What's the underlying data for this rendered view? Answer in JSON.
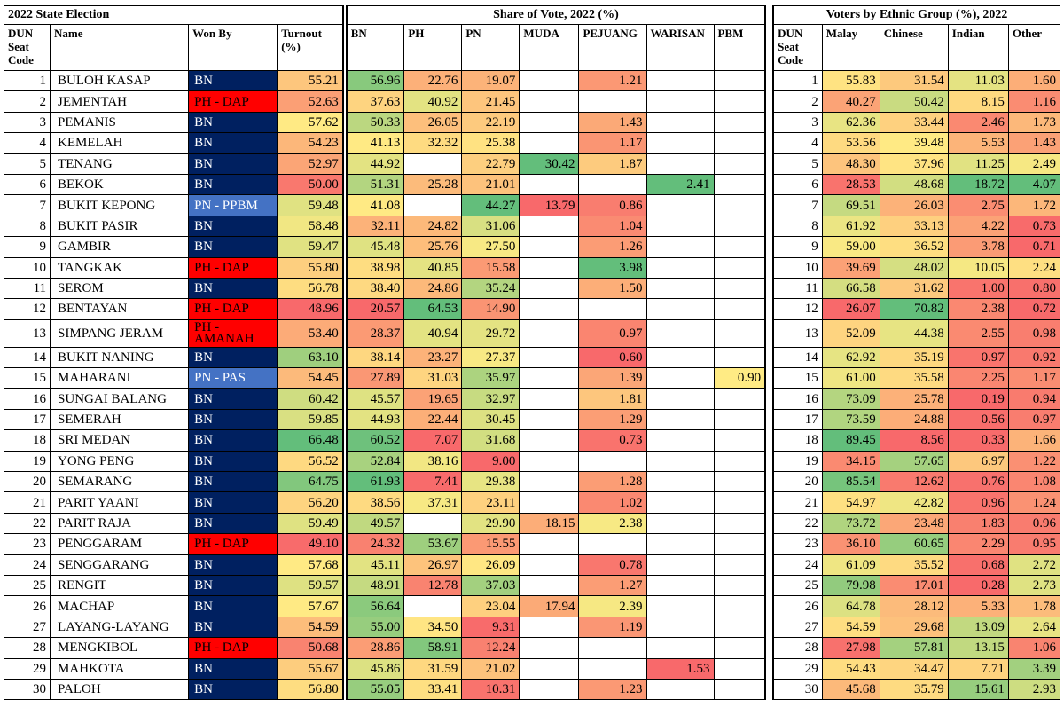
{
  "headers": {
    "group_left": "2022 State Election",
    "group_mid": "Share of Vote, 2022 (%)",
    "group_right": "Voters by Ethnic Group (%), 2022",
    "dun_seat_code": "DUN Seat Code",
    "name": "Name",
    "won_by": "Won By",
    "turnout": "Turnout (%)",
    "parties": [
      "BN",
      "PH",
      "PN",
      "MUDA",
      "PEJUANG",
      "WARISAN",
      "PBM"
    ],
    "dun_seat_code_right": "DUN Seat Code",
    "ethnic": [
      "Malay",
      "Chinese",
      "Indian",
      "Other"
    ]
  },
  "colors": {
    "BN": "#002060",
    "PH - DAP": "#ff0000",
    "PH - AMANAH": "#ff0000",
    "PN - PPBM": "#4472c4",
    "PN - PAS": "#4472c4"
  },
  "rows": [
    {
      "code": "1",
      "name": "BULOH KASAP",
      "won": "BN",
      "turnout": "55.21",
      "bn": "56.96",
      "ph": "22.76",
      "pn": "19.07",
      "muda": "",
      "pejuang": "1.21",
      "warisan": "",
      "pbm": "",
      "malay": "55.83",
      "chinese": "31.54",
      "indian": "11.03",
      "other": "1.60"
    },
    {
      "code": "2",
      "name": "JEMENTAH",
      "won": "PH - DAP",
      "turnout": "52.63",
      "bn": "37.63",
      "ph": "40.92",
      "pn": "21.45",
      "muda": "",
      "pejuang": "",
      "warisan": "",
      "pbm": "",
      "malay": "40.27",
      "chinese": "50.42",
      "indian": "8.15",
      "other": "1.16"
    },
    {
      "code": "3",
      "name": "PEMANIS",
      "won": "BN",
      "turnout": "57.62",
      "bn": "50.33",
      "ph": "26.05",
      "pn": "22.19",
      "muda": "",
      "pejuang": "1.43",
      "warisan": "",
      "pbm": "",
      "malay": "62.36",
      "chinese": "33.44",
      "indian": "2.46",
      "other": "1.73"
    },
    {
      "code": "4",
      "name": "KEMELAH",
      "won": "BN",
      "turnout": "54.23",
      "bn": "41.13",
      "ph": "32.32",
      "pn": "25.38",
      "muda": "",
      "pejuang": "1.17",
      "warisan": "",
      "pbm": "",
      "malay": "53.56",
      "chinese": "39.48",
      "indian": "5.53",
      "other": "1.43"
    },
    {
      "code": "5",
      "name": "TENANG",
      "won": "BN",
      "turnout": "52.97",
      "bn": "44.92",
      "ph": "",
      "pn": "22.79",
      "muda": "30.42",
      "pejuang": "1.87",
      "warisan": "",
      "pbm": "",
      "malay": "48.30",
      "chinese": "37.96",
      "indian": "11.25",
      "other": "2.49"
    },
    {
      "code": "6",
      "name": "BEKOK",
      "won": "BN",
      "turnout": "50.00",
      "bn": "51.31",
      "ph": "25.28",
      "pn": "21.01",
      "muda": "",
      "pejuang": "",
      "warisan": "2.41",
      "pbm": "",
      "malay": "28.53",
      "chinese": "48.68",
      "indian": "18.72",
      "other": "4.07"
    },
    {
      "code": "7",
      "name": "BUKIT KEPONG",
      "won": "PN - PPBM",
      "turnout": "59.48",
      "bn": "41.08",
      "ph": "",
      "pn": "44.27",
      "muda": "13.79",
      "pejuang": "0.86",
      "warisan": "",
      "pbm": "",
      "malay": "69.51",
      "chinese": "26.03",
      "indian": "2.75",
      "other": "1.72"
    },
    {
      "code": "8",
      "name": "BUKIT PASIR",
      "won": "BN",
      "turnout": "58.48",
      "bn": "32.11",
      "ph": "24.82",
      "pn": "31.06",
      "muda": "",
      "pejuang": "1.04",
      "warisan": "",
      "pbm": "",
      "malay": "61.92",
      "chinese": "33.13",
      "indian": "4.22",
      "other": "0.73"
    },
    {
      "code": "9",
      "name": "GAMBIR",
      "won": "BN",
      "turnout": "59.47",
      "bn": "45.48",
      "ph": "25.76",
      "pn": "27.50",
      "muda": "",
      "pejuang": "1.26",
      "warisan": "",
      "pbm": "",
      "malay": "59.00",
      "chinese": "36.52",
      "indian": "3.78",
      "other": "0.71"
    },
    {
      "code": "10",
      "name": "TANGKAK",
      "won": "PH - DAP",
      "turnout": "55.80",
      "bn": "38.98",
      "ph": "40.85",
      "pn": "15.58",
      "muda": "",
      "pejuang": "3.98",
      "warisan": "",
      "pbm": "",
      "malay": "39.69",
      "chinese": "48.02",
      "indian": "10.05",
      "other": "2.24"
    },
    {
      "code": "11",
      "name": "SEROM",
      "won": "BN",
      "turnout": "56.78",
      "bn": "38.40",
      "ph": "24.86",
      "pn": "35.24",
      "muda": "",
      "pejuang": "1.50",
      "warisan": "",
      "pbm": "",
      "malay": "66.58",
      "chinese": "31.62",
      "indian": "1.00",
      "other": "0.80"
    },
    {
      "code": "12",
      "name": "BENTAYAN",
      "won": "PH - DAP",
      "turnout": "48.96",
      "bn": "20.57",
      "ph": "64.53",
      "pn": "14.90",
      "muda": "",
      "pejuang": "",
      "warisan": "",
      "pbm": "",
      "malay": "26.07",
      "chinese": "70.82",
      "indian": "2.38",
      "other": "0.72"
    },
    {
      "code": "13",
      "name": "SIMPANG JERAM",
      "won": "PH - AMANAH",
      "turnout": "53.40",
      "bn": "28.37",
      "ph": "40.94",
      "pn": "29.72",
      "muda": "",
      "pejuang": "0.97",
      "warisan": "",
      "pbm": "",
      "malay": "52.09",
      "chinese": "44.38",
      "indian": "2.55",
      "other": "0.98"
    },
    {
      "code": "14",
      "name": "BUKIT NANING",
      "won": "BN",
      "turnout": "63.10",
      "bn": "38.14",
      "ph": "23.27",
      "pn": "27.37",
      "muda": "",
      "pejuang": "0.60",
      "warisan": "",
      "pbm": "",
      "malay": "62.92",
      "chinese": "35.19",
      "indian": "0.97",
      "other": "0.92"
    },
    {
      "code": "15",
      "name": "MAHARANI",
      "won": "PN - PAS",
      "turnout": "54.45",
      "bn": "27.89",
      "ph": "31.03",
      "pn": "35.97",
      "muda": "",
      "pejuang": "1.39",
      "warisan": "",
      "pbm": "0.90",
      "malay": "61.00",
      "chinese": "35.58",
      "indian": "2.25",
      "other": "1.17"
    },
    {
      "code": "16",
      "name": "SUNGAI BALANG",
      "won": "BN",
      "turnout": "60.42",
      "bn": "45.57",
      "ph": "19.65",
      "pn": "32.97",
      "muda": "",
      "pejuang": "1.81",
      "warisan": "",
      "pbm": "",
      "malay": "73.09",
      "chinese": "25.78",
      "indian": "0.19",
      "other": "0.94"
    },
    {
      "code": "17",
      "name": "SEMERAH",
      "won": "BN",
      "turnout": "59.85",
      "bn": "44.93",
      "ph": "22.44",
      "pn": "30.45",
      "muda": "",
      "pejuang": "1.29",
      "warisan": "",
      "pbm": "",
      "malay": "73.59",
      "chinese": "24.88",
      "indian": "0.56",
      "other": "0.97"
    },
    {
      "code": "18",
      "name": "SRI MEDAN",
      "won": "BN",
      "turnout": "66.48",
      "bn": "60.52",
      "ph": "7.07",
      "pn": "31.68",
      "muda": "",
      "pejuang": "0.73",
      "warisan": "",
      "pbm": "",
      "malay": "89.45",
      "chinese": "8.56",
      "indian": "0.33",
      "other": "1.66"
    },
    {
      "code": "19",
      "name": "YONG PENG",
      "won": "BN",
      "turnout": "56.52",
      "bn": "52.84",
      "ph": "38.16",
      "pn": "9.00",
      "muda": "",
      "pejuang": "",
      "warisan": "",
      "pbm": "",
      "malay": "34.15",
      "chinese": "57.65",
      "indian": "6.97",
      "other": "1.22"
    },
    {
      "code": "20",
      "name": "SEMARANG",
      "won": "BN",
      "turnout": "64.75",
      "bn": "61.93",
      "ph": "7.41",
      "pn": "29.38",
      "muda": "",
      "pejuang": "1.28",
      "warisan": "",
      "pbm": "",
      "malay": "85.54",
      "chinese": "12.62",
      "indian": "0.76",
      "other": "1.08"
    },
    {
      "code": "21",
      "name": "PARIT YAANI",
      "won": "BN",
      "turnout": "56.20",
      "bn": "38.56",
      "ph": "37.31",
      "pn": "23.11",
      "muda": "",
      "pejuang": "1.02",
      "warisan": "",
      "pbm": "",
      "malay": "54.97",
      "chinese": "42.82",
      "indian": "0.96",
      "other": "1.24"
    },
    {
      "code": "22",
      "name": "PARIT RAJA",
      "won": "BN",
      "turnout": "59.49",
      "bn": "49.57",
      "ph": "",
      "pn": "29.90",
      "muda": "18.15",
      "pejuang": "2.38",
      "warisan": "",
      "pbm": "",
      "malay": "73.72",
      "chinese": "23.48",
      "indian": "1.83",
      "other": "0.96"
    },
    {
      "code": "23",
      "name": "PENGGARAM",
      "won": "PH - DAP",
      "turnout": "49.10",
      "bn": "24.32",
      "ph": "53.67",
      "pn": "15.55",
      "muda": "",
      "pejuang": "",
      "warisan": "",
      "pbm": "",
      "malay": "36.10",
      "chinese": "60.65",
      "indian": "2.29",
      "other": "0.95"
    },
    {
      "code": "24",
      "name": "SENGGARANG",
      "won": "BN",
      "turnout": "57.68",
      "bn": "45.11",
      "ph": "26.97",
      "pn": "26.09",
      "muda": "",
      "pejuang": "0.78",
      "warisan": "",
      "pbm": "",
      "malay": "61.09",
      "chinese": "35.52",
      "indian": "0.68",
      "other": "2.72"
    },
    {
      "code": "25",
      "name": "RENGIT",
      "won": "BN",
      "turnout": "59.57",
      "bn": "48.91",
      "ph": "12.78",
      "pn": "37.03",
      "muda": "",
      "pejuang": "1.27",
      "warisan": "",
      "pbm": "",
      "malay": "79.98",
      "chinese": "17.01",
      "indian": "0.28",
      "other": "2.73"
    },
    {
      "code": "26",
      "name": "MACHAP",
      "won": "BN",
      "turnout": "57.67",
      "bn": "56.64",
      "ph": "",
      "pn": "23.04",
      "muda": "17.94",
      "pejuang": "2.39",
      "warisan": "",
      "pbm": "",
      "malay": "64.78",
      "chinese": "28.12",
      "indian": "5.33",
      "other": "1.78"
    },
    {
      "code": "27",
      "name": "LAYANG-LAYANG",
      "won": "BN",
      "turnout": "54.59",
      "bn": "55.00",
      "ph": "34.50",
      "pn": "9.31",
      "muda": "",
      "pejuang": "1.19",
      "warisan": "",
      "pbm": "",
      "malay": "54.59",
      "chinese": "29.68",
      "indian": "13.09",
      "other": "2.64"
    },
    {
      "code": "28",
      "name": "MENGKIBOL",
      "won": "PH - DAP",
      "turnout": "50.68",
      "bn": "28.86",
      "ph": "58.91",
      "pn": "12.24",
      "muda": "",
      "pejuang": "",
      "warisan": "",
      "pbm": "",
      "malay": "27.98",
      "chinese": "57.81",
      "indian": "13.15",
      "other": "1.06"
    },
    {
      "code": "29",
      "name": "MAHKOTA",
      "won": "BN",
      "turnout": "55.67",
      "bn": "45.86",
      "ph": "31.59",
      "pn": "21.02",
      "muda": "",
      "pejuang": "",
      "warisan": "1.53",
      "pbm": "",
      "malay": "54.43",
      "chinese": "34.47",
      "indian": "7.71",
      "other": "3.39"
    },
    {
      "code": "30",
      "name": "PALOH",
      "won": "BN",
      "turnout": "56.80",
      "bn": "55.05",
      "ph": "33.41",
      "pn": "10.31",
      "muda": "",
      "pejuang": "1.23",
      "warisan": "",
      "pbm": "",
      "malay": "45.68",
      "chinese": "35.79",
      "indian": "15.61",
      "other": "2.93"
    }
  ]
}
